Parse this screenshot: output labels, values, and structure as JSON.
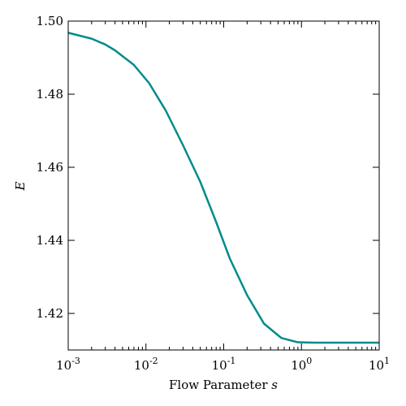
{
  "chart_data": {
    "type": "line",
    "xscale": "log",
    "xlim": [
      0.001,
      10
    ],
    "ylim": [
      1.41,
      1.5
    ],
    "xlabel": "Flow Parameter s",
    "ylabel": "E",
    "x_ticks": [
      0.001,
      0.01,
      0.1,
      1,
      10
    ],
    "x_tick_labels": [
      {
        "base": "10",
        "exp": "-3"
      },
      {
        "base": "10",
        "exp": "-2"
      },
      {
        "base": "10",
        "exp": "-1"
      },
      {
        "base": "10",
        "exp": "0"
      },
      {
        "base": "10",
        "exp": "1"
      }
    ],
    "y_ticks": [
      1.42,
      1.44,
      1.46,
      1.48,
      1.5
    ],
    "y_tick_labels": [
      "1.42",
      "1.44",
      "1.46",
      "1.48",
      "1.50"
    ],
    "line_color": "#008b8b",
    "series": [
      {
        "x": [
          0.001,
          0.002,
          0.003,
          0.004,
          0.007,
          0.011,
          0.018,
          0.03,
          0.05,
          0.08,
          0.12,
          0.2,
          0.33,
          0.55,
          0.9,
          1.5,
          3,
          10
        ],
        "y": [
          1.4968,
          1.4952,
          1.4936,
          1.492,
          1.488,
          1.483,
          1.4755,
          1.466,
          1.456,
          1.445,
          1.435,
          1.425,
          1.4172,
          1.4133,
          1.4121,
          1.412,
          1.412,
          1.412
        ]
      }
    ]
  }
}
